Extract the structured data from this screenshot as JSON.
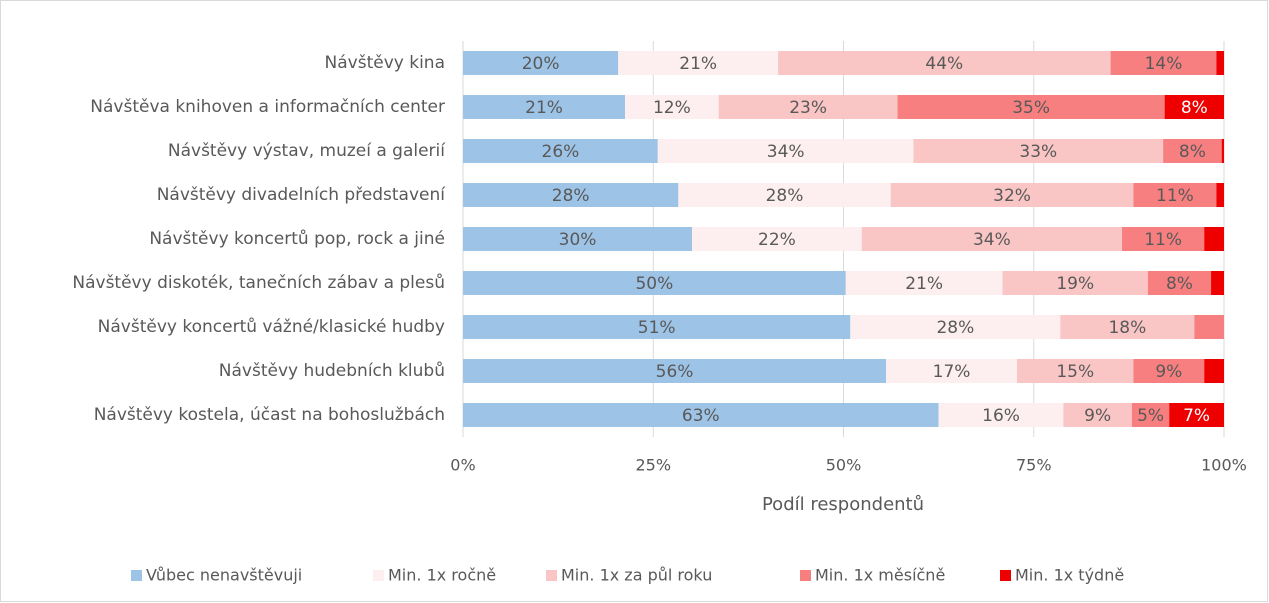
{
  "chart_data": {
    "type": "stacked-bar-horizontal",
    "x_axis_label": "Podíl respondentů",
    "categories": [
      "Návštěvy kina",
      "Návštěva knihoven a informačních center",
      "Návštěvy výstav, muzeí a galerií",
      "Návštěvy divadelních představení",
      "Návštěvy koncertů pop, rock a jiné",
      "Návštěvy diskoték, tanečních zábav a plesů",
      "Návštěvy koncertů vážné/klasické hudby",
      "Návštěvy hudebních klubů",
      "Návštěvy kostela, účast na bohoslužbách"
    ],
    "series": [
      {
        "name": "Vůbec nenavštěvuji",
        "color": "#9dc3e6",
        "values": [
          20.4,
          21.3,
          25.6,
          28.3,
          30.1,
          50.3,
          50.9,
          55.6,
          62.5
        ],
        "value_labels": [
          "20%",
          "21%",
          "26%",
          "28%",
          "30%",
          "50%",
          "51%",
          "56%",
          "63%"
        ]
      },
      {
        "name": "Min. 1x ročně",
        "color": "#fdefef",
        "values": [
          21.0,
          12.3,
          33.6,
          27.9,
          22.3,
          20.6,
          27.6,
          17.2,
          16.4
        ],
        "value_labels": [
          "21%",
          "12%",
          "34%",
          "28%",
          "22%",
          "21%",
          "28%",
          "17%",
          "16%"
        ]
      },
      {
        "name": "Min. 1x za půl roku",
        "color": "#f9c5c5",
        "values": [
          43.7,
          23.5,
          32.8,
          31.9,
          34.2,
          19.1,
          17.6,
          15.3,
          9.0
        ],
        "value_labels": [
          "44%",
          "23%",
          "33%",
          "32%",
          "34%",
          "19%",
          "18%",
          "15%",
          "9%"
        ]
      },
      {
        "name": "Min. 1x měsíčně",
        "color": "#f77f7f",
        "values": [
          13.9,
          35.1,
          7.7,
          10.9,
          10.8,
          8.3,
          3.9,
          9.3,
          4.9
        ],
        "value_labels": [
          "14%",
          "35%",
          "8%",
          "11%",
          "11%",
          "8%",
          null,
          "9%",
          "5%"
        ]
      },
      {
        "name": "Min. 1x týdně",
        "color": "#ee0000",
        "values": [
          1.0,
          7.8,
          0.3,
          1.0,
          2.6,
          1.7,
          0,
          2.6,
          7.2
        ],
        "value_labels": [
          null,
          "8%",
          null,
          null,
          null,
          null,
          null,
          null,
          "7%"
        ]
      }
    ],
    "xlim": [
      0,
      100
    ],
    "xticks": [
      {
        "value": 0,
        "label": "0%"
      },
      {
        "value": 25,
        "label": "25%"
      },
      {
        "value": 50,
        "label": "50%"
      },
      {
        "value": 75,
        "label": "75%"
      },
      {
        "value": 100,
        "label": "100%"
      }
    ],
    "grid": true,
    "legend": "bottom"
  }
}
